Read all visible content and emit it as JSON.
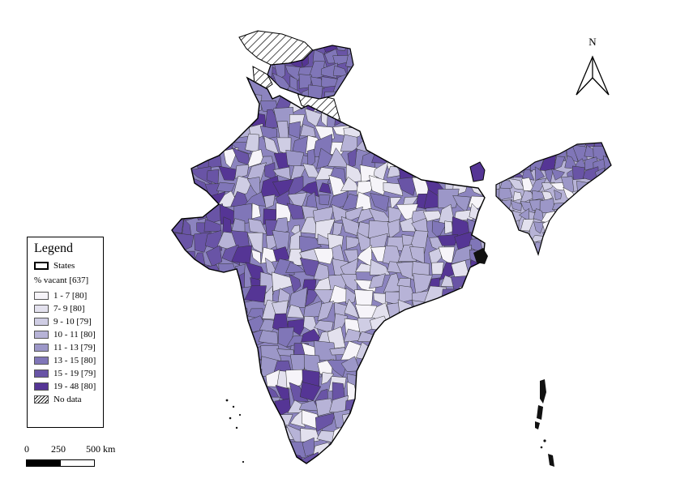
{
  "map": {
    "legend": {
      "title": "Legend",
      "states_label": "States",
      "subtitle": "% vacant [637]",
      "classes": [
        {
          "label": "1 - 7 [80]",
          "color": "#f6f4f9"
        },
        {
          "label": "7- 9 [80]",
          "color": "#e3e1ee"
        },
        {
          "label": "9 - 10 [79]",
          "color": "#cfcde4"
        },
        {
          "label": "10 - 11 [80]",
          "color": "#b7b3d7"
        },
        {
          "label": "11 - 13 [79]",
          "color": "#9c97c8"
        },
        {
          "label": "13 - 15 [80]",
          "color": "#8076b8"
        },
        {
          "label": "15 - 19 [79]",
          "color": "#6954a6"
        },
        {
          "label": "19 - 48 [80]",
          "color": "#553595"
        }
      ],
      "no_data_label": "No data"
    },
    "north_label": "N",
    "scale": {
      "labels": [
        "0",
        "250",
        "500 km"
      ]
    }
  }
}
